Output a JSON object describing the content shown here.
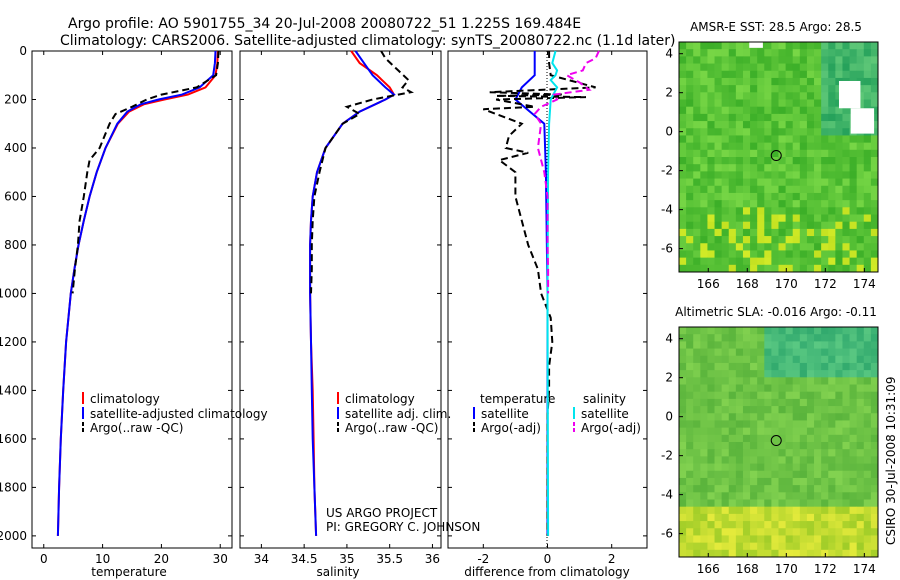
{
  "header": {
    "line1": "Argo profile: AO 5901755_34 20-Jul-2008 20080722_51 1.225S 169.484E",
    "line2": "Climatology: CARS2006. Satellite-adjusted climatology: synTS_20080722.nc (1.1d later)"
  },
  "colors": {
    "clim": "#ff0000",
    "sat": "#0000ff",
    "argo": "#000000",
    "sal_sat": "#00e5ee",
    "sal_argo": "#ee00ee"
  },
  "credit": {
    "line1": "US ARGO PROJECT",
    "line2": "PI: GREGORY C. JOHNSON"
  },
  "timestamp": "CSIRO 30-Jul-2008 10:31:09",
  "chart_data": [
    {
      "id": "temperature",
      "type": "line",
      "xlabel": "temperature",
      "xlim": [
        -2,
        32
      ],
      "ylim": [
        2050,
        0
      ],
      "xticks": [
        0,
        10,
        20,
        30
      ],
      "yticks": [
        0,
        200,
        400,
        600,
        800,
        1000,
        1200,
        1400,
        1600,
        1800,
        2000
      ],
      "legend": [
        "climatology",
        "satellite-adjusted climatology",
        "Argo(..raw -QC)"
      ],
      "series": [
        {
          "name": "climatology",
          "color": "#ff0000",
          "dash": "",
          "depth": [
            0,
            50,
            100,
            150,
            180,
            200,
            220,
            250,
            300,
            400,
            500,
            600,
            700,
            800,
            900,
            1000,
            1200,
            1400,
            1600,
            1800,
            2000
          ],
          "values": [
            29.6,
            29.5,
            29.2,
            27.5,
            24.5,
            20.5,
            17,
            14.5,
            12.6,
            10.5,
            9,
            7.8,
            6.8,
            5.9,
            5.2,
            4.6,
            3.8,
            3.3,
            2.9,
            2.6,
            2.4
          ]
        },
        {
          "name": "satellite-adjusted climatology",
          "color": "#0000ff",
          "dash": "",
          "depth": [
            0,
            50,
            100,
            150,
            180,
            200,
            220,
            250,
            300,
            400,
            500,
            600,
            700,
            800,
            900,
            1000,
            1200,
            1400,
            1600,
            1800,
            2000
          ],
          "values": [
            29.2,
            29.1,
            28.8,
            26.5,
            23.5,
            19.5,
            16.5,
            14.2,
            12.5,
            10.5,
            9,
            7.8,
            6.8,
            5.9,
            5.2,
            4.6,
            3.8,
            3.3,
            2.9,
            2.6,
            2.4
          ]
        },
        {
          "name": "Argo(..raw -QC)",
          "color": "#000000",
          "dash": "7,4",
          "depth": [
            0,
            50,
            100,
            150,
            180,
            200,
            230,
            260,
            300,
            400,
            450,
            500,
            600,
            700,
            800,
            900,
            1000
          ],
          "values": [
            29.7,
            29.6,
            29.3,
            26,
            20,
            17.5,
            15,
            12.2,
            11.2,
            9.5,
            7.8,
            7.4,
            6.8,
            6.1,
            5.8,
            5.3,
            4.9
          ]
        }
      ]
    },
    {
      "id": "salinity",
      "type": "line",
      "xlabel": "salinity",
      "xlim": [
        33.75,
        36.1
      ],
      "ylim": [
        2050,
        0
      ],
      "xticks": [
        34,
        34.5,
        35,
        35.5,
        36
      ],
      "legend": [
        "climatology",
        "satellite adj. clim.",
        "Argo(..raw -QC)"
      ],
      "series": [
        {
          "name": "climatology",
          "color": "#ff0000",
          "dash": "",
          "depth": [
            0,
            50,
            100,
            150,
            180,
            200,
            250,
            300,
            400,
            500,
            600,
            700,
            800,
            900,
            1000,
            1200,
            1400,
            1600,
            1800,
            2000
          ],
          "values": [
            35.05,
            35.15,
            35.35,
            35.5,
            35.55,
            35.45,
            35.15,
            34.95,
            34.75,
            34.65,
            34.6,
            34.58,
            34.57,
            34.57,
            34.57,
            34.58,
            34.6,
            34.61,
            34.62,
            34.64
          ]
        },
        {
          "name": "satellite adj. clim.",
          "color": "#0000ff",
          "dash": "",
          "depth": [
            0,
            50,
            100,
            150,
            180,
            200,
            250,
            300,
            400,
            500,
            600,
            700,
            800,
            900,
            1000,
            1200,
            1400,
            1600,
            1800,
            2000
          ],
          "values": [
            35.1,
            35.2,
            35.3,
            35.45,
            35.55,
            35.45,
            35.15,
            34.95,
            34.75,
            34.65,
            34.6,
            34.58,
            34.57,
            34.57,
            34.57,
            34.58,
            34.59,
            34.6,
            34.62,
            34.64
          ]
        },
        {
          "name": "Argo(..raw -QC)",
          "color": "#000000",
          "dash": "7,4",
          "depth": [
            0,
            30,
            80,
            120,
            150,
            170,
            180,
            200,
            230,
            260,
            300,
            400,
            500,
            600,
            700,
            800,
            900,
            1000
          ],
          "values": [
            35.4,
            35.45,
            35.6,
            35.72,
            35.65,
            35.75,
            35.6,
            35.3,
            35.0,
            35.15,
            34.95,
            34.75,
            34.68,
            34.62,
            34.6,
            34.59,
            34.59,
            34.58
          ]
        }
      ]
    },
    {
      "id": "difference",
      "type": "line",
      "xlabel": "difference from climatology",
      "xlim": [
        -3.1,
        3.1
      ],
      "ylim": [
        2050,
        0
      ],
      "xticks": [
        -2,
        0,
        2
      ],
      "legend_left": {
        "title": "temperature",
        "items": [
          "satellite",
          "Argo(-adj)"
        ]
      },
      "legend_right": {
        "title": "salinity",
        "items": [
          "satellite",
          "Argo(-adj)"
        ]
      },
      "series": [
        {
          "name": "temperature satellite",
          "color": "#0000ff",
          "dash": "",
          "depth": [
            0,
            50,
            100,
            150,
            200,
            300,
            500,
            1000,
            1500,
            2000
          ],
          "values": [
            -0.4,
            -0.4,
            -0.4,
            -0.8,
            -1.0,
            -0.1,
            -0.05,
            0,
            0,
            0
          ]
        },
        {
          "name": "temperature Argo(-adj)",
          "color": "#000000",
          "dash": "7,4",
          "depth": [
            0,
            50,
            100,
            150,
            170,
            180,
            185,
            190,
            200,
            230,
            240,
            300,
            350,
            400,
            420,
            450,
            500,
            600,
            700,
            800,
            900,
            1000,
            1100,
            1200,
            1300,
            1400,
            1500,
            1600,
            1800,
            2000
          ],
          "values": [
            0.05,
            0.05,
            0.1,
            1.5,
            -1.8,
            0.5,
            -1.6,
            1.2,
            -1.6,
            -0.4,
            -2,
            -0.8,
            -1.2,
            -1.3,
            -0.6,
            -1.5,
            -1.0,
            -1.0,
            -0.8,
            -0.6,
            -0.3,
            -0.2,
            0.1,
            0.15,
            0.05,
            0.05,
            0,
            0,
            0,
            0
          ]
        },
        {
          "name": "salinity satellite",
          "color": "#00e5ee",
          "dash": "",
          "depth": [
            0,
            50,
            80,
            100,
            120,
            150,
            200,
            300,
            500,
            1000,
            1500,
            2000
          ],
          "values": [
            0.25,
            0.15,
            0.3,
            0.25,
            0.1,
            0.3,
            0.1,
            0.05,
            0.02,
            0,
            0.01,
            0.02
          ]
        },
        {
          "name": "salinity Argo(-adj)",
          "color": "#ee00ee",
          "dash": "7,4",
          "depth": [
            0,
            30,
            50,
            80,
            100,
            130,
            160,
            180,
            200,
            230,
            260,
            300,
            400,
            500,
            600,
            700,
            800,
            900,
            1000
          ],
          "values": [
            1.6,
            1.5,
            1.2,
            1.1,
            0.6,
            1.0,
            1.3,
            0.2,
            0.3,
            -0.2,
            -0.4,
            -0.2,
            -0.3,
            -0.1,
            0,
            0,
            0,
            0.02,
            0.02
          ]
        }
      ]
    },
    {
      "id": "sst_map",
      "type": "heatmap",
      "title": "AMSR-E SST: 28.5 Argo: 28.5",
      "xlim": [
        164.5,
        174.7
      ],
      "ylim": [
        -7.2,
        4.6
      ],
      "xticks": [
        166,
        168,
        170,
        172,
        174
      ],
      "yticks": [
        -6,
        -4,
        -2,
        0,
        2,
        4
      ],
      "marker": {
        "lon": 169.484,
        "lat": -1.225
      }
    },
    {
      "id": "sla_map",
      "type": "heatmap",
      "title": "Altimetric SLA: -0.016 Argo: -0.11",
      "xlim": [
        164.5,
        174.7
      ],
      "ylim": [
        -7.2,
        4.6
      ],
      "xticks": [
        166,
        168,
        170,
        172,
        174
      ],
      "yticks": [
        -6,
        -4,
        -2,
        0,
        2,
        4
      ],
      "marker": {
        "lon": 169.484,
        "lat": -1.225
      }
    }
  ]
}
